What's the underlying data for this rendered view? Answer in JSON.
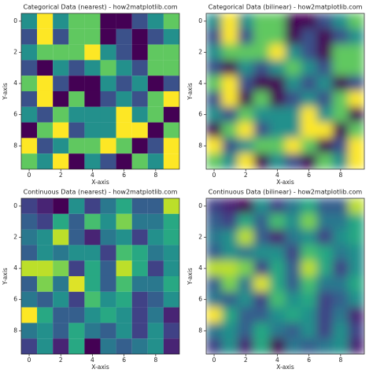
{
  "chart_data": [
    {
      "type": "heatmap",
      "title": "Categorical Data (nearest) - how2matplotlib.com",
      "interpolation": "nearest",
      "colormap": "viridis",
      "xlabel": "X-axis",
      "ylabel": "Y-axis",
      "xlim": [
        -0.5,
        9.5
      ],
      "ylim": [
        9.5,
        -0.5
      ],
      "xticks": [
        0,
        2,
        4,
        6,
        8
      ],
      "yticks": [
        0,
        2,
        4,
        6,
        8
      ],
      "values": [
        [
          2,
          4,
          2,
          3,
          3,
          0,
          0,
          1,
          2,
          3
        ],
        [
          1,
          4,
          1,
          3,
          3,
          0,
          1,
          0,
          1,
          2
        ],
        [
          2,
          3,
          3,
          3,
          4,
          2,
          1,
          0,
          3,
          3
        ],
        [
          1,
          0,
          2,
          1,
          2,
          3,
          2,
          1,
          3,
          3
        ],
        [
          3,
          4,
          1,
          0,
          0,
          2,
          1,
          2,
          0,
          1
        ],
        [
          1,
          4,
          0,
          3,
          0,
          1,
          2,
          1,
          3,
          4
        ],
        [
          2,
          1,
          3,
          2,
          2,
          2,
          4,
          2,
          3,
          0
        ],
        [
          0,
          3,
          4,
          1,
          2,
          2,
          4,
          4,
          0,
          3
        ],
        [
          4,
          1,
          2,
          3,
          3,
          4,
          3,
          0,
          1,
          4
        ],
        [
          3,
          2,
          4,
          0,
          2,
          1,
          0,
          3,
          2,
          4
        ]
      ]
    },
    {
      "type": "heatmap",
      "title": "Categorical Data (bilinear) - how2matplotlib.com",
      "interpolation": "bilinear",
      "colormap": "viridis",
      "xlabel": "X-axis",
      "ylabel": "Y-axis",
      "xlim": [
        -0.5,
        9.5
      ],
      "ylim": [
        9.5,
        -0.5
      ],
      "xticks": [
        0,
        2,
        4,
        6,
        8
      ],
      "yticks": [
        0,
        2,
        4,
        6,
        8
      ],
      "values": [
        [
          2,
          4,
          2,
          3,
          3,
          0,
          0,
          1,
          2,
          3
        ],
        [
          1,
          4,
          1,
          3,
          3,
          0,
          1,
          0,
          1,
          2
        ],
        [
          2,
          3,
          3,
          3,
          4,
          2,
          1,
          0,
          3,
          3
        ],
        [
          1,
          0,
          2,
          1,
          2,
          3,
          2,
          1,
          3,
          3
        ],
        [
          3,
          4,
          1,
          0,
          0,
          2,
          1,
          2,
          0,
          1
        ],
        [
          1,
          4,
          0,
          3,
          0,
          1,
          2,
          1,
          3,
          4
        ],
        [
          2,
          1,
          3,
          2,
          2,
          2,
          4,
          2,
          3,
          0
        ],
        [
          0,
          3,
          4,
          1,
          2,
          2,
          4,
          4,
          0,
          3
        ],
        [
          4,
          1,
          2,
          3,
          3,
          4,
          3,
          0,
          1,
          4
        ],
        [
          3,
          2,
          4,
          0,
          2,
          1,
          0,
          3,
          2,
          4
        ]
      ]
    },
    {
      "type": "heatmap",
      "title": "Continuous Data (nearest) - how2matplotlib.com",
      "interpolation": "nearest",
      "colormap": "viridis",
      "xlabel": "X-axis",
      "ylabel": "Y-axis",
      "xlim": [
        -0.5,
        9.5
      ],
      "ylim": [
        9.5,
        -0.5
      ],
      "xticks": [
        0,
        2,
        4,
        6,
        8
      ],
      "yticks": [
        0,
        2,
        4,
        6,
        8
      ],
      "values": [
        [
          0.2,
          0.1,
          0.0,
          0.5,
          0.2,
          0.4,
          0.6,
          0.3,
          0.3,
          0.9
        ],
        [
          0.3,
          0.2,
          0.6,
          0.3,
          0.7,
          0.5,
          0.8,
          0.4,
          0.4,
          0.6
        ],
        [
          0.4,
          0.5,
          0.9,
          0.3,
          0.1,
          0.4,
          0.5,
          0.2,
          0.5,
          0.6
        ],
        [
          0.3,
          0.5,
          0.4,
          0.5,
          0.5,
          0.2,
          0.7,
          0.6,
          0.4,
          0.5
        ],
        [
          0.9,
          0.9,
          0.8,
          0.2,
          0.6,
          0.3,
          0.9,
          0.6,
          0.2,
          0.5
        ],
        [
          0.3,
          0.8,
          0.4,
          0.95,
          0.6,
          0.3,
          0.7,
          0.4,
          0.4,
          0.6
        ],
        [
          0.4,
          0.3,
          0.5,
          0.2,
          0.7,
          0.5,
          0.6,
          0.2,
          0.3,
          0.5
        ],
        [
          1.0,
          0.6,
          0.3,
          0.3,
          0.5,
          0.6,
          0.5,
          0.2,
          0.4,
          0.1
        ],
        [
          0.4,
          0.5,
          0.3,
          0.6,
          0.4,
          0.3,
          0.5,
          0.2,
          0.5,
          0.2
        ],
        [
          0.2,
          0.5,
          0.1,
          0.6,
          0.0,
          0.4,
          0.3,
          0.4,
          0.5,
          0.1
        ]
      ]
    },
    {
      "type": "heatmap",
      "title": "Continuous Data (bilinear) - how2matplotlib.com",
      "interpolation": "bilinear",
      "colormap": "viridis",
      "xlabel": "X-axis",
      "ylabel": "Y-axis",
      "xlim": [
        -0.5,
        9.5
      ],
      "ylim": [
        9.5,
        -0.5
      ],
      "xticks": [
        0,
        2,
        4,
        6,
        8
      ],
      "yticks": [
        0,
        2,
        4,
        6,
        8
      ],
      "values": [
        [
          0.2,
          0.1,
          0.0,
          0.5,
          0.2,
          0.4,
          0.6,
          0.3,
          0.3,
          0.9
        ],
        [
          0.3,
          0.2,
          0.6,
          0.3,
          0.7,
          0.5,
          0.8,
          0.4,
          0.4,
          0.6
        ],
        [
          0.4,
          0.5,
          0.9,
          0.3,
          0.1,
          0.4,
          0.5,
          0.2,
          0.5,
          0.6
        ],
        [
          0.3,
          0.5,
          0.4,
          0.5,
          0.5,
          0.2,
          0.7,
          0.6,
          0.4,
          0.5
        ],
        [
          0.9,
          0.9,
          0.8,
          0.2,
          0.6,
          0.3,
          0.9,
          0.6,
          0.2,
          0.5
        ],
        [
          0.3,
          0.8,
          0.4,
          0.95,
          0.6,
          0.3,
          0.7,
          0.4,
          0.4,
          0.6
        ],
        [
          0.4,
          0.3,
          0.5,
          0.2,
          0.7,
          0.5,
          0.6,
          0.2,
          0.3,
          0.5
        ],
        [
          1.0,
          0.6,
          0.3,
          0.3,
          0.5,
          0.6,
          0.5,
          0.2,
          0.4,
          0.1
        ],
        [
          0.4,
          0.5,
          0.3,
          0.6,
          0.4,
          0.3,
          0.5,
          0.2,
          0.5,
          0.2
        ],
        [
          0.2,
          0.5,
          0.1,
          0.6,
          0.0,
          0.4,
          0.3,
          0.4,
          0.5,
          0.1
        ]
      ]
    }
  ]
}
